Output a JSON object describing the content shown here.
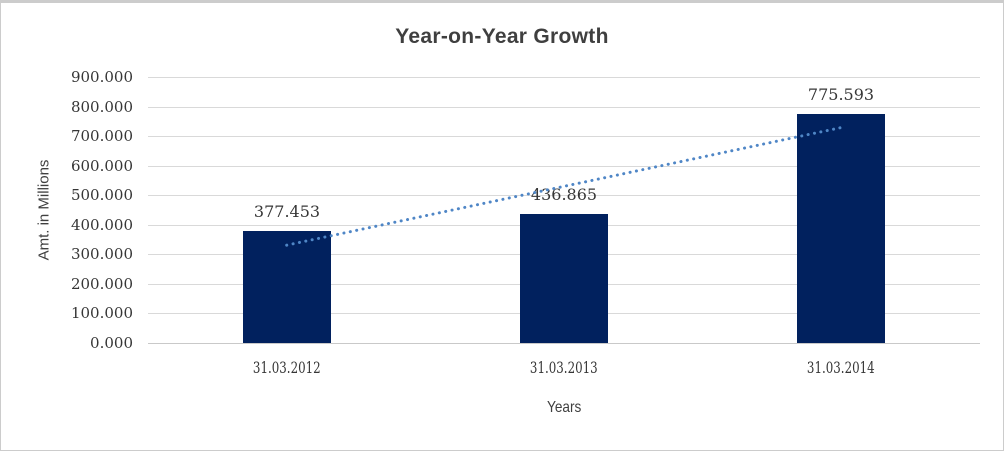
{
  "frame": {
    "background": "#ffffff",
    "border_color": "#cccccc"
  },
  "chart_data": {
    "type": "bar",
    "title": "Year-on-Year Growth",
    "xlabel": "Years",
    "ylabel": "Amt. in Millions",
    "categories": [
      "31.03.2012",
      "31.03.2013",
      "31.03.2014"
    ],
    "values": [
      377.453,
      436.865,
      775.593
    ],
    "data_labels": [
      "377.453",
      "436.865",
      "775.593"
    ],
    "ylim": [
      0,
      900
    ],
    "ytick_step": 100,
    "ytick_labels": [
      "900.000",
      "800.000",
      "700.000",
      "600.000",
      "500.000",
      "400.000",
      "300.000",
      "200.000",
      "100.000",
      "0.000"
    ],
    "grid": true,
    "legend": false,
    "bar_color": "#01215e",
    "grid_color": "#d9d9d9",
    "text_color": "#363636",
    "title_color": "#3f3f3f",
    "trendline": {
      "type": "linear",
      "style": "dotted",
      "color": "#4f86c6",
      "points": [
        {
          "category": "31.03.2012",
          "value": 331
        },
        {
          "category": "31.03.2014",
          "value": 729
        }
      ]
    }
  }
}
